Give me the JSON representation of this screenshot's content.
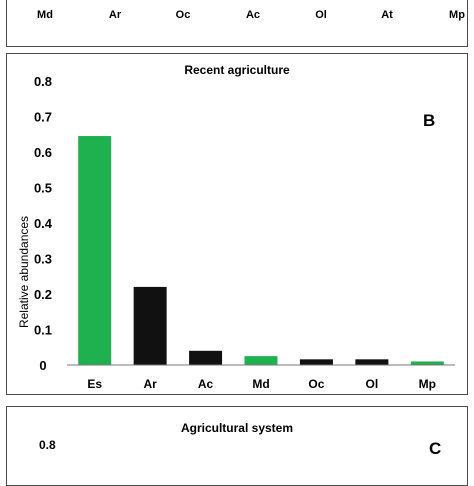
{
  "top_panel": {
    "categories": [
      "Md",
      "Ar",
      "Oc",
      "Ac",
      "Ol",
      "At",
      "Mp"
    ]
  },
  "chart_data": {
    "type": "bar",
    "title": "Recent agriculture",
    "panel_label": "B",
    "ylabel": "Relative abundances",
    "xlabel": "",
    "ylim": [
      0,
      0.8
    ],
    "yticks": [
      "0",
      "0.1",
      "0.2",
      "0.3",
      "0.4",
      "0.5",
      "0.6",
      "0.7",
      "0.8"
    ],
    "categories": [
      "Es",
      "Ar",
      "Ac",
      "Md",
      "Oc",
      "Ol",
      "Mp"
    ],
    "values": [
      0.645,
      0.22,
      0.04,
      0.025,
      0.016,
      0.016,
      0.01
    ],
    "bar_colors": [
      "#1fb050",
      "#111111",
      "#111111",
      "#1fb050",
      "#111111",
      "#111111",
      "#1fb050"
    ],
    "grid": false,
    "legend": "none"
  },
  "bottom_panel": {
    "title": "Agricultural system",
    "panel_label": "C",
    "visible_tick": "0.8"
  }
}
